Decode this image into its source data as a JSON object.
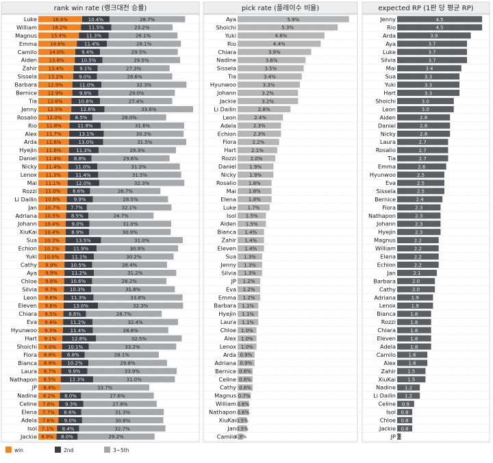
{
  "chart_data": [
    {
      "type": "bar",
      "stacked": true,
      "orientation": "horizontal",
      "title": "rank win rate (랭크대전 승률)",
      "categories": [
        "Luke",
        "William",
        "Magnus",
        "Emma",
        "Camilo",
        "Aiden",
        "Zahir",
        "Sissela",
        "Barbara",
        "Bernice",
        "Tia",
        "Jenny",
        "Rosalio",
        "Rio",
        "Alex",
        "Arda",
        "Hyejin",
        "Daniel",
        "Nicky",
        "Lenox",
        "Mai",
        "Rozzi",
        "Li Dailin",
        "Jan",
        "Adriana",
        "Johann",
        "XiuKai",
        "Sua",
        "Echion",
        "Yuki",
        "Cathy",
        "Aya",
        "Chloe",
        "Silvia",
        "Leon",
        "Eleven",
        "Chiara",
        "Eva",
        "Hyunwoo",
        "Hart",
        "Shoichi",
        "Fiora",
        "Bianca",
        "Laura",
        "Nathapon",
        "JP",
        "Nadine",
        "Celine",
        "Elena",
        "Adela",
        "Isol",
        "Jackie"
      ],
      "series": [
        {
          "name": "win",
          "color": "#f58220",
          "labels": [
            "16.6%",
            "16.2%",
            "15.4%",
            "14.6%",
            "14.0%",
            "13.8%",
            "13.4%",
            "13.2%",
            "12.9%",
            "12.9%",
            "12.6%",
            "12.5%",
            "12.0%",
            "11.8%",
            "11.7%",
            "11.6%",
            "11.6%",
            "11.4%",
            "11.4%",
            "11.3%",
            "11.1%",
            "11.0%",
            "10.8%",
            "10.7%",
            "10.5%",
            "10.4%",
            "10.4%",
            "10.3%",
            "10.2%",
            "10.0%",
            "9.9%",
            "9.9%",
            "9.8%",
            "9.7%",
            "9.6%",
            "9.6%",
            "9.5%",
            "9.4%",
            "9.3%",
            "9.1%",
            "9.0%",
            "8.8%",
            "8.8%",
            "8.7%",
            "8.5%",
            "8.4%",
            "8.2%",
            "7.8%",
            "7.7%",
            "7.6%",
            "7.1%",
            "6.9%"
          ],
          "values": [
            16.6,
            16.2,
            15.4,
            14.6,
            14.0,
            13.8,
            13.4,
            13.2,
            12.9,
            12.9,
            12.6,
            12.5,
            12.0,
            11.8,
            11.7,
            11.6,
            11.6,
            11.4,
            11.4,
            11.3,
            11.1,
            11.0,
            10.8,
            10.7,
            10.5,
            10.4,
            10.4,
            10.3,
            10.2,
            10.0,
            9.9,
            9.9,
            9.8,
            9.7,
            9.6,
            9.6,
            9.5,
            9.4,
            9.3,
            9.1,
            9.0,
            8.8,
            8.8,
            8.7,
            8.5,
            8.4,
            8.2,
            7.8,
            7.7,
            7.6,
            7.1,
            6.9
          ]
        },
        {
          "name": "2nd",
          "color": "#3a3f47",
          "labels": [
            "10.4%",
            "11.5%",
            "11.3%",
            "11.4%",
            "9.4%",
            "10.5%",
            "9.1%",
            "9.0%",
            "11.0%",
            "9.9%",
            "10.8%",
            "12.6%",
            "8.5%",
            "11.9%",
            "13.1%",
            "13.0%",
            "11.3%",
            "8.8%",
            "11.0%",
            "11.4%",
            "12.0%",
            "8.6%",
            "9.9%",
            "7.7%",
            "8.5%",
            "9.0%",
            "8.9%",
            "13.5%",
            "11.9%",
            "11.1%",
            "10.5%",
            "11.2%",
            "10.6%",
            "10.3%",
            "11.3%",
            "13.0%",
            "8.6%",
            "11.2%",
            "11.4%",
            "12.8%",
            "10.1%",
            "8.8%",
            "10.2%",
            "9.9%",
            "12.3%",
            "",
            "8.0%",
            "9.3%",
            "8.6%",
            "9.0%",
            "8.4%",
            "8.0%"
          ],
          "values": [
            10.4,
            11.5,
            11.3,
            11.4,
            9.4,
            10.5,
            9.1,
            9.0,
            11.0,
            9.9,
            10.8,
            12.6,
            8.5,
            11.9,
            13.1,
            13.0,
            11.3,
            8.8,
            11.0,
            11.4,
            12.0,
            8.6,
            9.9,
            7.7,
            8.5,
            9.0,
            8.9,
            13.5,
            11.9,
            11.1,
            10.5,
            11.2,
            10.6,
            10.3,
            11.3,
            13.0,
            8.6,
            11.2,
            11.4,
            12.8,
            10.1,
            8.8,
            10.2,
            9.9,
            12.3,
            0,
            8.0,
            9.3,
            8.6,
            9.0,
            8.4,
            8.0
          ]
        },
        {
          "name": "3~5th",
          "color": "#a5a8ab",
          "labels": [
            "28.7%",
            "23.2%",
            "26.1%",
            "28.1%",
            "29.5%",
            "29.5%",
            "27.3%",
            "28.6%",
            "32.3%",
            "29.0%",
            "27.4%",
            "33.6%",
            "28.0%",
            "31.6%",
            "30.3%",
            "31.5%",
            "29.3%",
            "29.6%",
            "31.3%",
            "31.5%",
            "32.3%",
            "26.7%",
            "28.5%",
            "32.1%",
            "24.7%",
            "31.0%",
            "30.9%",
            "31.0%",
            "30.9%",
            "30.2%",
            "28.4%",
            "31.2%",
            "28.2%",
            "31.8%",
            "33.8%",
            "32.3%",
            "28.7%",
            "32.4%",
            "28.6%",
            "32.5%",
            "33.2%",
            "28.1%",
            "29.8%",
            "33.9%",
            "31.0%",
            "33.7%",
            "27.6%",
            "27.8%",
            "31.3%",
            "30.8%",
            "32.7%",
            "29.2%"
          ],
          "values": [
            28.7,
            23.2,
            26.1,
            28.1,
            29.5,
            29.5,
            27.3,
            28.6,
            32.3,
            29.0,
            27.4,
            33.6,
            28.0,
            31.6,
            30.3,
            31.5,
            29.3,
            29.6,
            31.3,
            31.5,
            32.3,
            26.7,
            28.5,
            32.1,
            24.7,
            31.0,
            30.9,
            31.0,
            30.9,
            30.2,
            28.4,
            31.2,
            28.2,
            31.8,
            33.8,
            32.3,
            28.7,
            32.4,
            28.6,
            32.5,
            33.2,
            28.1,
            29.8,
            33.9,
            31.0,
            33.7,
            27.6,
            27.8,
            31.3,
            30.8,
            32.7,
            29.2
          ]
        }
      ],
      "legend": [
        "win",
        "2nd",
        "3~5th"
      ],
      "legend_position": "bottom",
      "xlim": [
        0,
        60
      ]
    },
    {
      "type": "bar",
      "orientation": "horizontal",
      "title": "pick rate (플레이수 비율)",
      "color": "#b3b5b7",
      "categories": [
        "Aya",
        "Shoichi",
        "Yuki",
        "Rio",
        "Chiara",
        "Nadine",
        "Sissela",
        "Tia",
        "Hyunwoo",
        "Johann",
        "Jackie",
        "Li Dailin",
        "Leon",
        "Adela",
        "Echion",
        "Fiora",
        "Hart",
        "Rozzi",
        "Daniel",
        "Nicky",
        "Rosalio",
        "Mai",
        "Elena",
        "Luke",
        "Isol",
        "Aiden",
        "Bianca",
        "Zahir",
        "Eleven",
        "Sua",
        "Jenny",
        "Silvia",
        "JP",
        "Eva",
        "Emma",
        "Barbara",
        "Hyejin",
        "Laura",
        "Chloe",
        "Alex",
        "Lenox",
        "Arda",
        "Adriana",
        "Bernice",
        "Celine",
        "Cathy",
        "Magnus",
        "William",
        "Nathapon",
        "XiuKai",
        "Jan",
        "Camilo"
      ],
      "labels": [
        "5.9%",
        "5.3%",
        "4.6%",
        "4.4%",
        "3.9%",
        "3.6%",
        "3.5%",
        "3.4%",
        "3.3%",
        "3.2%",
        "3.2%",
        "2.8%",
        "2.4%",
        "2.3%",
        "2.3%",
        "2.2%",
        "2.1%",
        "2.0%",
        "1.9%",
        "1.9%",
        "1.8%",
        "1.8%",
        "1.8%",
        "1.7%",
        "1.5%",
        "1.5%",
        "1.4%",
        "1.4%",
        "1.4%",
        "1.3%",
        "1.3%",
        "1.3%",
        "1.2%",
        "1.2%",
        "1.2%",
        "1.1%",
        "1.1%",
        "1.1%",
        "1.0%",
        "1.0%",
        "1.0%",
        "0.9%",
        "0.9%",
        "0.8%",
        "0.8%",
        "0.8%",
        "0.7%",
        "0.6%",
        "0.6%",
        "0.5%",
        "0.5%",
        "0.3%"
      ],
      "values": [
        5.9,
        5.3,
        4.6,
        4.4,
        3.9,
        3.6,
        3.5,
        3.4,
        3.3,
        3.2,
        3.2,
        2.8,
        2.4,
        2.3,
        2.3,
        2.2,
        2.1,
        2.0,
        1.9,
        1.9,
        1.8,
        1.8,
        1.8,
        1.7,
        1.5,
        1.5,
        1.4,
        1.4,
        1.4,
        1.3,
        1.3,
        1.3,
        1.2,
        1.2,
        1.2,
        1.1,
        1.1,
        1.1,
        1.0,
        1.0,
        1.0,
        0.9,
        0.9,
        0.8,
        0.8,
        0.8,
        0.7,
        0.6,
        0.6,
        0.5,
        0.5,
        0.3
      ],
      "xlim": [
        0,
        6.2
      ]
    },
    {
      "type": "bar",
      "orientation": "horizontal",
      "title": "expected RP (1판 당 평균 RP)",
      "color": "#5b5e62",
      "categories": [
        "Jenny",
        "Rio",
        "Arda",
        "Aya",
        "Luke",
        "Silvia",
        "Mai",
        "Sua",
        "Yuki",
        "Hart",
        "Shoichi",
        "Leon",
        "Aiden",
        "Daniel",
        "Nicky",
        "Laura",
        "Rosalio",
        "Tia",
        "Emma",
        "Hyunwoo",
        "Eva",
        "Sissela",
        "Bernice",
        "Fiora",
        "Nathapon",
        "Johann",
        "Hyejin",
        "Magnus",
        "William",
        "Elena",
        "Echion",
        "Jan",
        "Barbara",
        "Cathy",
        "Adriana",
        "Lenox",
        "Bianca",
        "Rozzi",
        "Chiara",
        "Eleven",
        "Adela",
        "Camilo",
        "Alex",
        "Zahir",
        "XiuKai",
        "Nadine",
        "Li Dailin",
        "Celine",
        "Isol",
        "Chloe",
        "Jackie",
        "JP"
      ],
      "labels": [
        "4.5",
        "4.5",
        "3.9",
        "3.7",
        "3.7",
        "3.7",
        "3.4",
        "3.3",
        "3.3",
        "3.3",
        "3.0",
        "3.0",
        "2.8",
        "2.8",
        "2.8",
        "2.7",
        "2.7",
        "2.7",
        "2.6",
        "2.5",
        "2.5",
        "2.5",
        "2.4",
        "2.3",
        "2.3",
        "2.3",
        "2.3",
        "2.2",
        "2.2",
        "2.2",
        "2.2",
        "2.1",
        "2.0",
        "2.0",
        "1.9",
        "1.9",
        "1.8",
        "1.8",
        "1.8",
        "1.8",
        "1.8",
        "1.6",
        "1.6",
        "1.5",
        "1.5",
        "1.2",
        "1.2",
        "0.9",
        "0.8",
        "0.8",
        "0.8",
        "0.2"
      ],
      "values": [
        4.5,
        4.5,
        3.9,
        3.7,
        3.7,
        3.7,
        3.4,
        3.3,
        3.3,
        3.3,
        3.0,
        3.0,
        2.8,
        2.8,
        2.8,
        2.7,
        2.7,
        2.7,
        2.6,
        2.5,
        2.5,
        2.5,
        2.4,
        2.3,
        2.3,
        2.3,
        2.3,
        2.2,
        2.2,
        2.2,
        2.2,
        2.1,
        2.0,
        2.0,
        1.9,
        1.9,
        1.8,
        1.8,
        1.8,
        1.8,
        1.8,
        1.6,
        1.6,
        1.5,
        1.5,
        1.2,
        1.2,
        0.9,
        0.8,
        0.8,
        0.8,
        0.2
      ],
      "xlim": [
        0,
        4.75
      ]
    }
  ]
}
